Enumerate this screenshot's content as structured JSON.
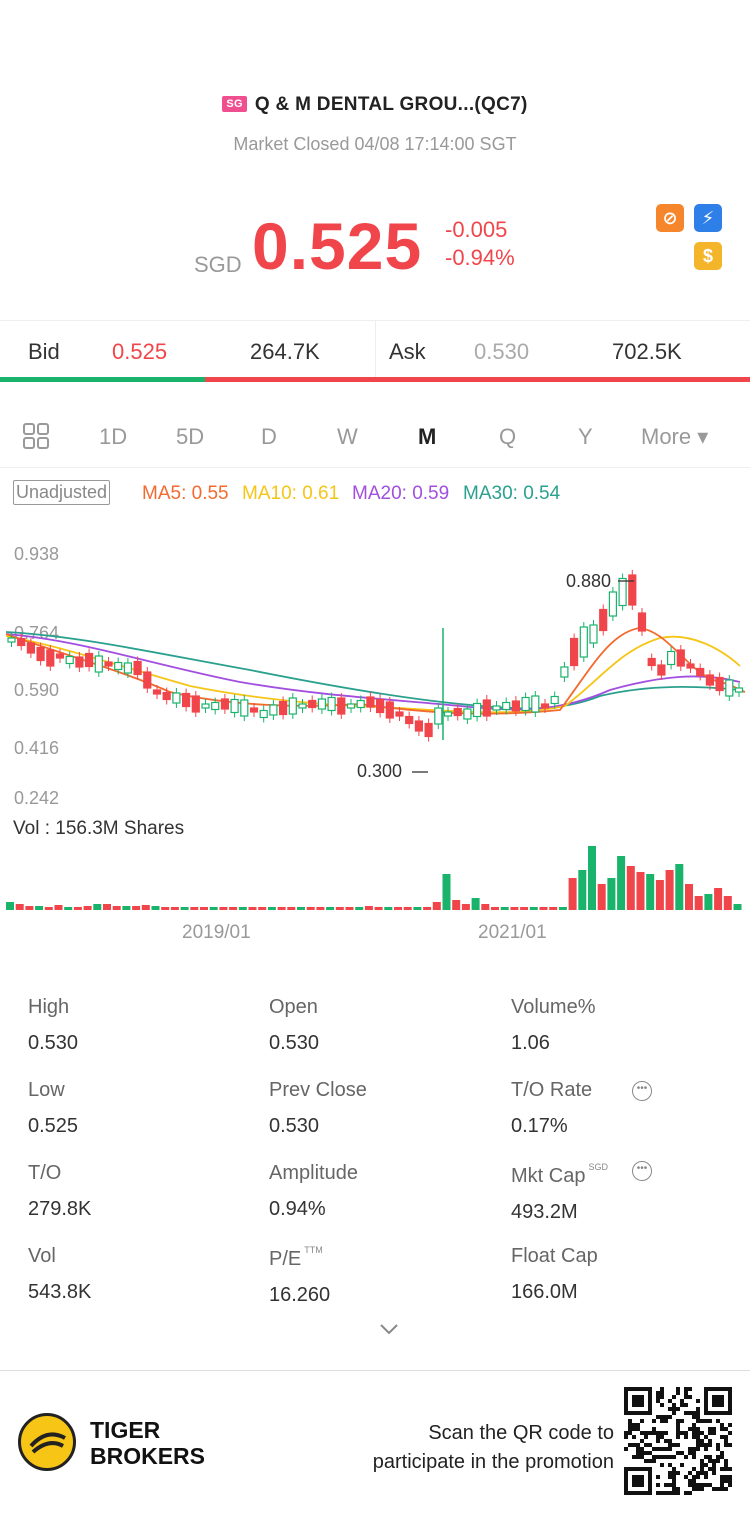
{
  "header": {
    "market_badge": "SG",
    "title": "Q & M DENTAL GROU...(QC7)",
    "status": "Market Closed 04/08 17:14:00 SGT",
    "currency": "SGD",
    "price": "0.525",
    "change": "-0.005",
    "change_pct": "-0.94%",
    "icons": [
      "no-shorting-icon",
      "lightning-icon",
      "dollar-icon"
    ]
  },
  "bidask": {
    "bid_label": "Bid",
    "bid_price": "0.525",
    "bid_size": "264.7K",
    "ask_label": "Ask",
    "ask_price": "0.530",
    "ask_size": "702.5K",
    "bid_ratio": 0.273
  },
  "tabs": [
    "1D",
    "5D",
    "D",
    "W",
    "M",
    "Q",
    "Y",
    "More ▾"
  ],
  "active_tab": "M",
  "ma": {
    "unadjusted": "Unadjusted",
    "ma5": "MA5: 0.55",
    "ma10": "MA10: 0.61",
    "ma20": "MA20: 0.59",
    "ma30": "MA30: 0.54"
  },
  "chart_data": {
    "type": "candlestick",
    "y_ticks": [
      "0.938",
      "0.764",
      "0.590",
      "0.416",
      "0.242"
    ],
    "ylim": [
      0.242,
      0.938
    ],
    "annotations": {
      "high": "0.880",
      "low": "0.300"
    },
    "volume_label": "Vol  : 156.3M Shares",
    "x_ticks": [
      "2019/01",
      "2021/01"
    ],
    "colors": {
      "up": "#19b36b",
      "down": "#f0464b",
      "ma5": "#f26a2e",
      "ma10": "#f5c518",
      "ma20": "#a24fe0",
      "ma30": "#2aa08e"
    }
  },
  "stats": [
    {
      "label": "High",
      "value": "0.530"
    },
    {
      "label": "Open",
      "value": "0.530"
    },
    {
      "label": "Volume%",
      "value": "1.06"
    },
    {
      "label": "Low",
      "value": "0.525"
    },
    {
      "label": "Prev Close",
      "value": "0.530"
    },
    {
      "label": "T/O Rate",
      "value": "0.17%"
    },
    {
      "label": "T/O",
      "value": "279.8K"
    },
    {
      "label": "Amplitude",
      "value": "0.94%"
    },
    {
      "label": "Mkt Cap",
      "value": "493.2M",
      "sup": "SGD"
    },
    {
      "label": "Vol",
      "value": "543.8K"
    },
    {
      "label": "P/E",
      "value": "16.260",
      "sup": "TTM"
    },
    {
      "label": "Float Cap",
      "value": "166.0M"
    }
  ],
  "footer": {
    "brand_line1": "TIGER",
    "brand_line2": "BROKERS",
    "promo_line1": "Scan the QR code to",
    "promo_line2": "participate in the promotion"
  }
}
